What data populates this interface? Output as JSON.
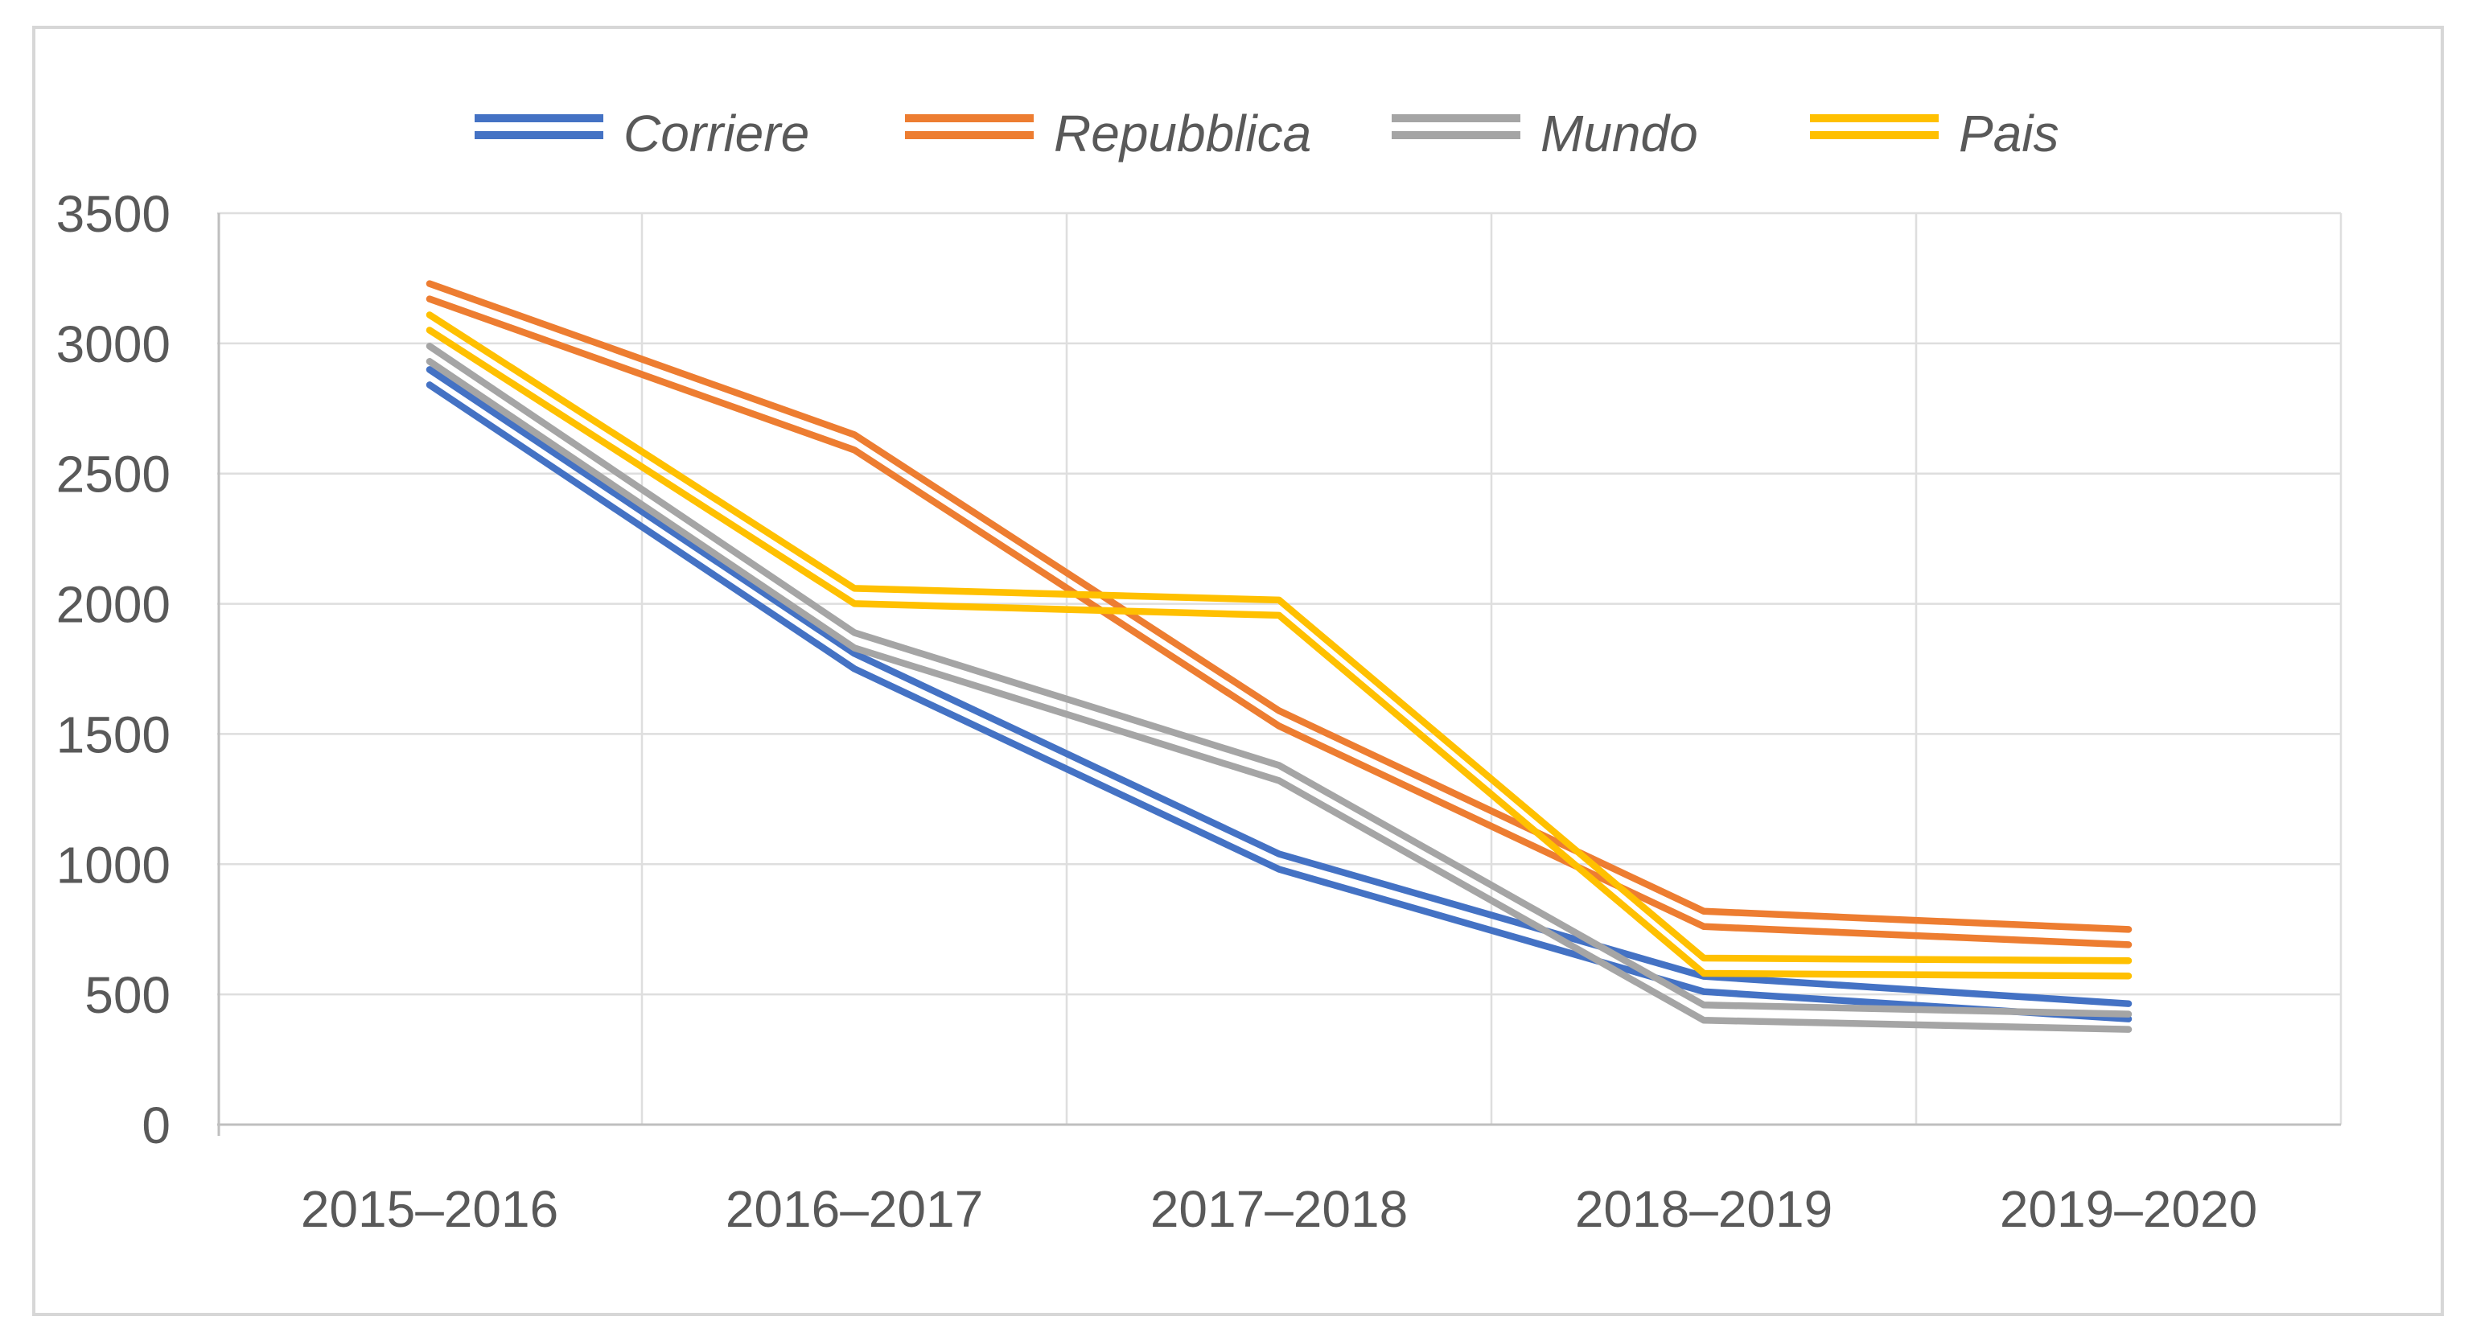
{
  "chart_data": {
    "type": "line",
    "title": "",
    "xlabel": "",
    "ylabel": "",
    "categories": [
      "2015–2016",
      "2016–2017",
      "2017–2018",
      "2018–2019",
      "2019–2020"
    ],
    "series": [
      {
        "name": "Corriere",
        "color": "#4472C4",
        "values": [
          2870,
          1780,
          1010,
          540,
          435
        ]
      },
      {
        "name": "Repubblica",
        "color": "#ED7D31",
        "values": [
          3200,
          2620,
          1560,
          790,
          720
        ]
      },
      {
        "name": "Mundo",
        "color": "#A5A5A5",
        "values": [
          2960,
          1860,
          1350,
          430,
          395
        ]
      },
      {
        "name": "Pais",
        "color": "#FFC000",
        "values": [
          3080,
          2030,
          1985,
          610,
          600
        ]
      }
    ],
    "ylim": [
      0,
      3500
    ],
    "ytick_step": 500,
    "ytick_labels": [
      "3500",
      "3000",
      "2500",
      "2000",
      "1500",
      "1000",
      "500",
      "0"
    ],
    "grid": true,
    "legend_position": "top",
    "line_style": "double",
    "colors": {
      "text": "#595959",
      "gridline": "#DEDEDE",
      "axis_line": "#BFBFBF",
      "frame": "#D7D7D7",
      "background": "#FFFFFF"
    }
  }
}
